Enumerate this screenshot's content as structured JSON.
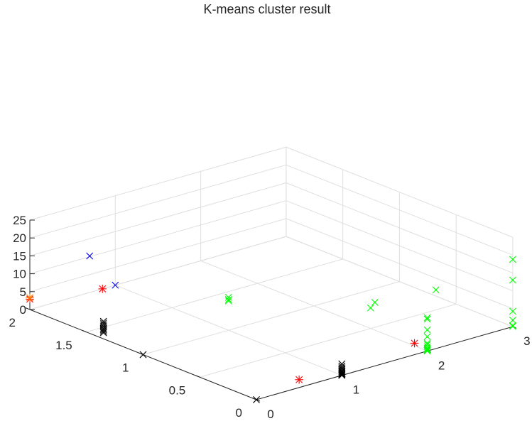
{
  "chart_data": {
    "type": "scatter",
    "projection": "3d",
    "title": "K-means cluster result",
    "xlabel": "",
    "ylabel": "",
    "zlabel": "",
    "xlim": [
      0,
      3
    ],
    "ylim": [
      0,
      2
    ],
    "zlim": [
      0,
      25
    ],
    "xticks": [
      0,
      1,
      2,
      3
    ],
    "xtick_labels": [
      "0",
      "1",
      "2",
      "3"
    ],
    "yticks": [
      0,
      0.5,
      1,
      1.5,
      2
    ],
    "ytick_labels": [
      "0",
      "0.5",
      "1",
      "1.5",
      "2"
    ],
    "zticks": [
      0,
      5,
      10,
      15,
      20,
      25
    ],
    "ztick_labels": [
      "0",
      "5",
      "10",
      "15",
      "20",
      "25"
    ],
    "grid": true,
    "legend": "none",
    "series": [
      {
        "color": "#00ff00",
        "marker": "x",
        "points": [
          [
            3,
            0,
            18.8
          ],
          [
            3,
            0,
            13
          ],
          [
            3,
            0,
            4.3
          ],
          [
            3,
            0,
            1.8
          ],
          [
            3,
            0,
            0.3
          ],
          [
            3,
            0,
            0.1
          ],
          [
            2.1,
            0,
            16.4
          ],
          [
            2,
            0,
            9.3
          ],
          [
            2,
            0,
            8.9
          ],
          [
            2,
            0,
            5.9
          ],
          [
            2,
            0,
            4.0
          ],
          [
            2,
            0,
            2.2
          ],
          [
            2,
            0,
            1.8
          ],
          [
            2,
            0,
            1.2
          ],
          [
            2,
            0,
            0.7
          ],
          [
            2,
            0,
            0.4
          ],
          [
            2,
            0,
            0.2
          ],
          [
            2,
            0,
            0.1
          ],
          [
            2,
            0,
            0.0
          ],
          [
            1.85,
            0.35,
            10.2
          ],
          [
            1.8,
            0.35,
            9.0
          ],
          [
            1.0,
            1.0,
            9.2
          ],
          [
            1.0,
            1.0,
            8.6
          ],
          [
            1.0,
            1.0,
            8.2
          ]
        ]
      },
      {
        "color": "#000000",
        "marker": "x",
        "points": [
          [
            1,
            0,
            3.2
          ],
          [
            1,
            0,
            2.6
          ],
          [
            1,
            0,
            2.1
          ],
          [
            1,
            0,
            1.7
          ],
          [
            1,
            0,
            1.3
          ],
          [
            1,
            0,
            1.0
          ],
          [
            1,
            0,
            0.7
          ],
          [
            1,
            0,
            0.4
          ],
          [
            1,
            0,
            0.2
          ],
          [
            1,
            0,
            0.0
          ],
          [
            0,
            0,
            0
          ],
          [
            0,
            1,
            0
          ],
          [
            0,
            1.35,
            4.9
          ],
          [
            0,
            1.35,
            4.4
          ],
          [
            0,
            1.35,
            3.9
          ],
          [
            0,
            1.35,
            3.4
          ],
          [
            0,
            1.35,
            2.9
          ],
          [
            0,
            1.35,
            2.5
          ],
          [
            0,
            1.35,
            2.1
          ],
          [
            0,
            1.35,
            1.7
          ]
        ]
      },
      {
        "color": "#0000ff",
        "marker": "x",
        "points": [
          [
            1,
            2,
            0
          ],
          [
            0.7,
            2,
            10.2
          ]
        ]
      },
      {
        "color": "#ff0000",
        "marker": "*",
        "points": [
          [
            1.85,
            0,
            3.2
          ],
          [
            0.5,
            0,
            2.2
          ],
          [
            0.85,
            2,
            0
          ],
          [
            0,
            2,
            2.9
          ]
        ]
      },
      {
        "color": "#ff7f00",
        "marker": "*",
        "points": [
          [
            0,
            2,
            3.3
          ]
        ]
      }
    ]
  }
}
